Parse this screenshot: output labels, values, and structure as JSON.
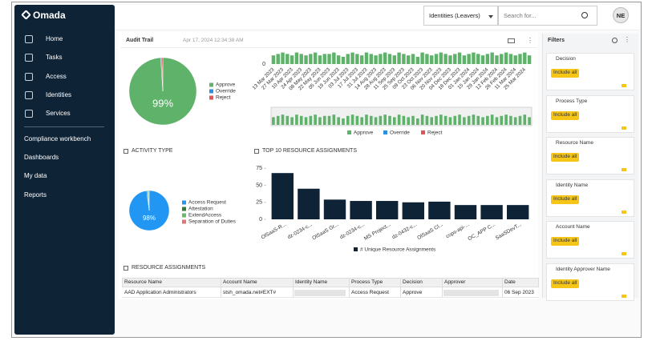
{
  "sidebar": {
    "logo": "Omada",
    "nav": [
      "Home",
      "Tasks",
      "Access",
      "Identities",
      "Services"
    ],
    "links": [
      "Compliance workbench",
      "Dashboards",
      "My data",
      "Reports"
    ]
  },
  "topbar": {
    "view_select": "Identities (Leavers)",
    "search_placeholder": "Search for...",
    "avatar": "NE"
  },
  "audit_trail": {
    "title": "Audit Trail",
    "timestamp": "Apr 17, 2024 12:34:38 AM",
    "pie": {
      "type": "pie",
      "categories": [
        "Approve",
        "Override",
        "Reject"
      ],
      "values": [
        99,
        0.5,
        0.5
      ],
      "value_labels": [
        "99%",
        null,
        null
      ],
      "colors": [
        "#5fb26a",
        "#2e8fe0",
        "#e05555"
      ]
    },
    "bars": {
      "type": "bar",
      "categories": [
        "13 Mar 2023",
        null,
        "27 Mar 2023",
        null,
        "10 Apr 2023",
        null,
        "24 Apr 2023",
        null,
        "08 May 2023",
        null,
        "22 May 2023",
        null,
        "05 Jun 2023",
        null,
        "19 Jun 2023",
        null,
        "03 Jul 2023",
        null,
        "17 Jul 2023",
        null,
        "31 Jul 2023",
        null,
        "14 Aug 2023",
        null,
        "28 Aug 2023",
        null,
        "11 Sep 2023",
        null,
        "25 Sep 2023",
        null,
        "09 Oct 2023",
        null,
        "23 Oct 2023",
        null,
        "06 Nov 2023",
        null,
        "20 Nov 2023",
        null,
        "04 Dec 2023",
        null,
        "18 Dec 2023",
        null,
        "01 Jan 2024",
        null,
        "15 Jan 2024",
        null,
        "29 Jan 2024",
        null,
        "12 Feb 2024",
        null,
        "26 Feb 2024",
        null,
        "11 Mar 2024",
        null,
        "25 Mar 2024",
        null
      ],
      "series": [
        {
          "name": "Approve",
          "color": "#5fb26a",
          "values": [
            6,
            7,
            8,
            7,
            6,
            8,
            7,
            6,
            7,
            8,
            6,
            7,
            7,
            8,
            6,
            5,
            7,
            8,
            7,
            6,
            8,
            7,
            6,
            7,
            8,
            7,
            6,
            8,
            7,
            6,
            7,
            5,
            8,
            7,
            6,
            7,
            8,
            7,
            6,
            7,
            8,
            6,
            7,
            8,
            7,
            6,
            7,
            8,
            6,
            7,
            8,
            7,
            6,
            7,
            8,
            6
          ]
        },
        {
          "name": "Override",
          "color": "#2e8fe0",
          "values": [
            0,
            0,
            0,
            0,
            0,
            0,
            0,
            0,
            0,
            0,
            0,
            0,
            0,
            0,
            0,
            0,
            0,
            0,
            0,
            0,
            0,
            0,
            0,
            0,
            0,
            0,
            0,
            0,
            0,
            0,
            0,
            0,
            0,
            0,
            0,
            0,
            0,
            0,
            0,
            0,
            0,
            0,
            0,
            0,
            0,
            0,
            0,
            0,
            0,
            0,
            0,
            0,
            0,
            0,
            0,
            0
          ]
        },
        {
          "name": "Reject",
          "color": "#e05555",
          "values": [
            0,
            0,
            0,
            0,
            0,
            0,
            0,
            0,
            0,
            0,
            0,
            0,
            0,
            0,
            0,
            0,
            0,
            0,
            0,
            0,
            0,
            0,
            0,
            0,
            0,
            0,
            0,
            0,
            0,
            0,
            0,
            0,
            0,
            0,
            0,
            0,
            0,
            0,
            0,
            0,
            0,
            0,
            0,
            0,
            0,
            0,
            0,
            0,
            0,
            0,
            0,
            0,
            0,
            0,
            0,
            0
          ]
        }
      ],
      "ylim": [
        0,
        10
      ],
      "yticks": [
        0
      ]
    }
  },
  "activity_type": {
    "title": "ACTIVITY TYPE",
    "pie": {
      "type": "pie",
      "categories": [
        "Access Request",
        "Attestation",
        "ExtendAccess",
        "Separation of Duties"
      ],
      "values": [
        98,
        0.7,
        0.7,
        0.6
      ],
      "value_labels": [
        "98%",
        null,
        null,
        null
      ],
      "colors": [
        "#2196f3",
        "#2e7d32",
        "#66bb6a",
        "#e57373"
      ]
    }
  },
  "top_resources": {
    "title": "TOP 10 RESOURCE ASSIGNMENTS",
    "chart": {
      "type": "bar",
      "categories": [
        "OlSaaS-R...",
        "dz-0234-c...",
        "OlSaaS Gr...",
        "dz-0234-c...",
        "MS Project...",
        "dz-0432-c...",
        "OlSaaS Cl...",
        "cops-api-...",
        "OC_APP C...",
        "SaaSDevT..."
      ],
      "series": [
        {
          "name": "# Unique Resource Assignments",
          "color": "#0f2336",
          "values": [
            68,
            45,
            29,
            27,
            27,
            25,
            26,
            21,
            21,
            21
          ]
        }
      ],
      "ylim": [
        0,
        80
      ],
      "yticks": [
        0,
        25,
        50,
        75
      ]
    }
  },
  "resource_assignments": {
    "title": "RESOURCE ASSIGNMENTS",
    "columns": [
      "Resource Name",
      "Account Name",
      "Identity Name",
      "Process Type",
      "Decision",
      "Approver",
      "Date"
    ],
    "rows": [
      [
        "AAD Application Administrators",
        "stsh_omada.net#EXT#",
        null,
        "Access Request",
        "Approve",
        null,
        "06 Sep 2023"
      ]
    ]
  },
  "filters": {
    "title": "Filters",
    "sections": [
      {
        "label": "Decision",
        "button": "Include all"
      },
      {
        "label": "Process Type",
        "button": "Include all"
      },
      {
        "label": "Resource Name",
        "button": "Include all"
      },
      {
        "label": "Identity Name",
        "button": "Include all"
      },
      {
        "label": "Account Name",
        "button": "Include all"
      },
      {
        "label": "Identity Approver Name",
        "button": "Include all"
      }
    ]
  }
}
